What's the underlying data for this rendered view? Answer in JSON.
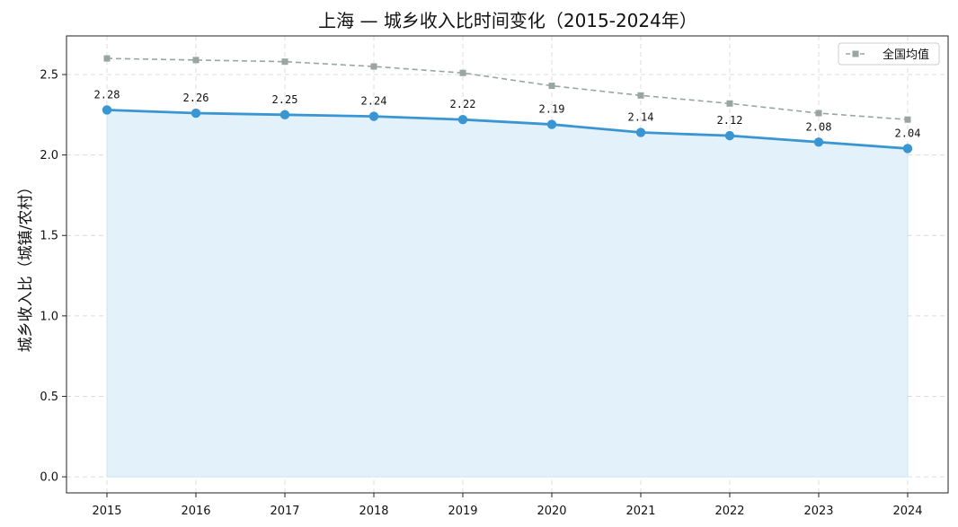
{
  "chart_data": {
    "type": "line",
    "title": "上海 — 城乡收入比时间变化（2015-2024年）",
    "xlabel": "",
    "ylabel": "城乡收入比（城镇/农村）",
    "x": [
      2015,
      2016,
      2017,
      2018,
      2019,
      2020,
      2021,
      2022,
      2023,
      2024
    ],
    "x_tick_labels": [
      "2015",
      "2016",
      "2017",
      "2018",
      "2019",
      "2020",
      "2021",
      "2022",
      "2023",
      "2024"
    ],
    "ylim": [
      -0.1,
      2.74
    ],
    "y_ticks": [
      0.0,
      0.5,
      1.0,
      1.5,
      2.0,
      2.5
    ],
    "y_tick_labels": [
      "0.0",
      "0.5",
      "1.0",
      "1.5",
      "2.0",
      "2.5"
    ],
    "grid": true,
    "legend_position": "top-right",
    "series": [
      {
        "key": "shanghai",
        "values": [
          2.28,
          2.26,
          2.25,
          2.24,
          2.22,
          2.19,
          2.14,
          2.12,
          2.08,
          2.04
        ],
        "data_labels": [
          "2.28",
          "2.26",
          "2.25",
          "2.24",
          "2.22",
          "2.19",
          "2.14",
          "2.12",
          "2.08",
          "2.04"
        ],
        "color": "#3a96d2",
        "fill_color": "#e3f1fa",
        "marker": "circle",
        "line_style": "solid"
      },
      {
        "key": "national",
        "name": "全国均值",
        "values": [
          2.6,
          2.59,
          2.58,
          2.55,
          2.51,
          2.43,
          2.37,
          2.32,
          2.26,
          2.22
        ],
        "color": "#98a5a2",
        "marker": "square",
        "line_style": "dashed"
      }
    ]
  }
}
